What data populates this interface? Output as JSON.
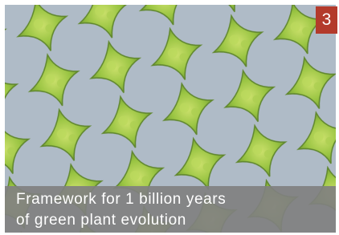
{
  "badge": "3",
  "caption": {
    "lines": [
      "Framework for 1 billion years",
      "of green plant evolution"
    ]
  }
}
